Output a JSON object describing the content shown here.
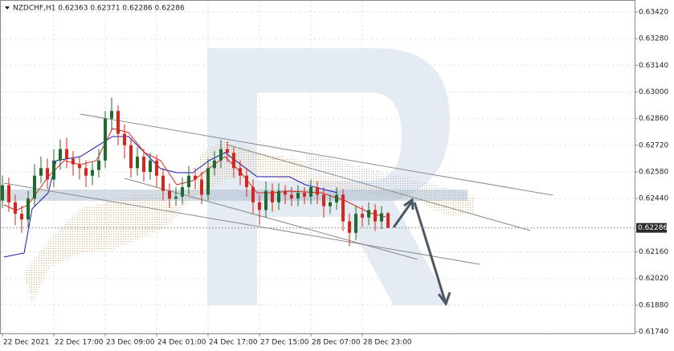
{
  "chart_data": {
    "type": "candlestick",
    "title": "NZDCHF,H1  0.62363 0.62371 0.62286 0.62286",
    "open": [
      0.6243,
      0.6251,
      0.6242,
      0.6236,
      0.6233,
      0.6244,
      0.6256,
      0.626,
      0.6254,
      0.6264,
      0.627,
      0.6265,
      0.6262,
      0.626,
      0.6256,
      0.6259,
      0.6264,
      0.6286,
      0.629,
      0.6278,
      0.6272,
      0.626,
      0.6266,
      0.6258,
      0.6264,
      0.6256,
      0.6248,
      0.6244,
      0.6245,
      0.625,
      0.6256,
      0.6254,
      0.6246,
      0.626,
      0.6264,
      0.627,
      0.6268,
      0.626,
      0.6256,
      0.625,
      0.6242,
      0.6238,
      0.6248,
      0.6242,
      0.6248,
      0.6246,
      0.6244,
      0.6247,
      0.6245,
      0.625,
      0.6246,
      0.624,
      0.6242,
      0.6246,
      0.6232,
      0.6226,
      0.6236,
      0.6234,
      0.6238,
      0.6232,
      0.62363
    ],
    "high": [
      0.6256,
      0.6255,
      0.6246,
      0.624,
      0.6248,
      0.6262,
      0.6266,
      0.6265,
      0.627,
      0.6275,
      0.6276,
      0.6269,
      0.6266,
      0.6264,
      0.6263,
      0.627,
      0.629,
      0.6297,
      0.6293,
      0.6283,
      0.6276,
      0.6271,
      0.627,
      0.6268,
      0.6267,
      0.626,
      0.6252,
      0.625,
      0.6255,
      0.6261,
      0.626,
      0.6258,
      0.6265,
      0.6269,
      0.6275,
      0.6274,
      0.6271,
      0.6264,
      0.626,
      0.6254,
      0.6246,
      0.6253,
      0.6252,
      0.6252,
      0.6251,
      0.625,
      0.6251,
      0.625,
      0.6254,
      0.6253,
      0.625,
      0.6246,
      0.625,
      0.6249,
      0.6236,
      0.624,
      0.624,
      0.6242,
      0.6241,
      0.624,
      0.62371
    ],
    "low": [
      0.6239,
      0.6237,
      0.623,
      0.6226,
      0.6229,
      0.624,
      0.6252,
      0.6249,
      0.625,
      0.6259,
      0.626,
      0.6256,
      0.6254,
      0.625,
      0.6251,
      0.6255,
      0.626,
      0.628,
      0.6272,
      0.6265,
      0.6255,
      0.6256,
      0.6253,
      0.6254,
      0.625,
      0.6243,
      0.6239,
      0.624,
      0.6241,
      0.6246,
      0.6249,
      0.6241,
      0.6243,
      0.6256,
      0.626,
      0.6263,
      0.6255,
      0.6251,
      0.6245,
      0.6236,
      0.623,
      0.6234,
      0.6237,
      0.6238,
      0.6241,
      0.624,
      0.624,
      0.6241,
      0.6241,
      0.6241,
      0.6234,
      0.6236,
      0.6238,
      0.6227,
      0.6219,
      0.6222,
      0.6229,
      0.623,
      0.6227,
      0.6228,
      0.62286
    ],
    "close": [
      0.6251,
      0.6242,
      0.6236,
      0.6233,
      0.6244,
      0.6256,
      0.626,
      0.6254,
      0.6264,
      0.627,
      0.6265,
      0.6262,
      0.626,
      0.6256,
      0.6259,
      0.6264,
      0.6286,
      0.629,
      0.6278,
      0.6272,
      0.626,
      0.6266,
      0.6258,
      0.6264,
      0.6256,
      0.6248,
      0.6244,
      0.6245,
      0.625,
      0.6256,
      0.6254,
      0.6246,
      0.626,
      0.6264,
      0.627,
      0.6268,
      0.626,
      0.6256,
      0.625,
      0.6242,
      0.6238,
      0.6248,
      0.6242,
      0.6248,
      0.6246,
      0.6244,
      0.6247,
      0.6245,
      0.625,
      0.6246,
      0.624,
      0.6242,
      0.6246,
      0.6232,
      0.6226,
      0.6236,
      0.6234,
      0.6238,
      0.6232,
      0.62363,
      0.62286
    ],
    "up_color": "#1f6b2e",
    "down_color": "#d9261c",
    "xlim": [
      -0.375,
      98.375
    ],
    "xticks": [
      {
        "value": 0,
        "label": "22 Dec 2021"
      },
      {
        "value": 8,
        "label": "22 Dec 17:00"
      },
      {
        "value": 16,
        "label": "23 Dec 09:00"
      },
      {
        "value": 24,
        "label": "24 Dec 01:00"
      },
      {
        "value": 32,
        "label": "24 Dec 17:00"
      },
      {
        "value": 40,
        "label": "27 Dec 15:00"
      },
      {
        "value": 48,
        "label": "28 Dec 07:00"
      },
      {
        "value": 56,
        "label": "28 Dec 23:00"
      }
    ],
    "ylim": [
      0.61732,
      0.63483
    ],
    "yticks": [
      {
        "value": 0.6342,
        "label": "0.63420"
      },
      {
        "value": 0.6328,
        "label": "0.63280"
      },
      {
        "value": 0.6314,
        "label": "0.63140"
      },
      {
        "value": 0.63,
        "label": "0.63000"
      },
      {
        "value": 0.6286,
        "label": "0.62860"
      },
      {
        "value": 0.6272,
        "label": "0.62720"
      },
      {
        "value": 0.6258,
        "label": "0.62580"
      },
      {
        "value": 0.6244,
        "label": "0.62440"
      },
      {
        "value": 0.6216,
        "label": "0.62160"
      },
      {
        "value": 0.6202,
        "label": "0.62020"
      },
      {
        "value": 0.6188,
        "label": "0.61880"
      },
      {
        "value": 0.6174,
        "label": "0.61740"
      }
    ],
    "last_price": {
      "value": 0.62286,
      "label": "0.62286"
    },
    "grid": true
  }
}
